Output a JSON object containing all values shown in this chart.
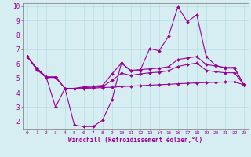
{
  "xlabel": "Windchill (Refroidissement éolien,°C)",
  "x": [
    0,
    1,
    2,
    3,
    4,
    5,
    6,
    7,
    8,
    9,
    10,
    11,
    12,
    13,
    14,
    15,
    16,
    17,
    18,
    19,
    20,
    21,
    22,
    23
  ],
  "line1": [
    6.5,
    5.7,
    5.1,
    3.0,
    4.3,
    1.75,
    1.65,
    1.65,
    2.1,
    3.5,
    6.05,
    5.5,
    5.55,
    7.05,
    6.9,
    7.9,
    9.95,
    8.9,
    9.4,
    6.5,
    5.9,
    5.7,
    5.7,
    4.55
  ],
  "line2": [
    6.5,
    5.6,
    5.05,
    5.05,
    4.3,
    4.25,
    4.3,
    4.32,
    4.35,
    4.38,
    4.42,
    4.45,
    4.48,
    4.52,
    4.55,
    4.58,
    4.62,
    4.65,
    4.68,
    4.7,
    4.72,
    4.74,
    4.74,
    4.55
  ],
  "line3": [
    6.5,
    5.7,
    5.1,
    5.1,
    4.3,
    4.3,
    4.4,
    4.45,
    4.5,
    5.3,
    6.05,
    5.55,
    5.6,
    5.65,
    5.7,
    5.8,
    6.3,
    6.4,
    6.5,
    5.95,
    5.85,
    5.75,
    5.75,
    4.55
  ],
  "line4": [
    6.5,
    5.65,
    5.07,
    5.07,
    4.3,
    4.28,
    4.35,
    4.38,
    4.42,
    4.85,
    5.35,
    5.2,
    5.3,
    5.38,
    5.42,
    5.52,
    5.82,
    5.95,
    6.05,
    5.55,
    5.45,
    5.38,
    5.38,
    4.55
  ],
  "color": "#990099",
  "bg_color": "#d6eef2",
  "grid_color": "#b8dde4",
  "ylim": [
    1.5,
    10.2
  ],
  "xlim": [
    -0.5,
    23.5
  ],
  "yticks": [
    2,
    3,
    4,
    5,
    6,
    7,
    8,
    9,
    10
  ],
  "xticks": [
    0,
    1,
    2,
    3,
    4,
    5,
    6,
    7,
    8,
    9,
    10,
    11,
    12,
    13,
    14,
    15,
    16,
    17,
    18,
    19,
    20,
    21,
    22,
    23
  ],
  "markersize": 2.0,
  "linewidth": 0.8
}
